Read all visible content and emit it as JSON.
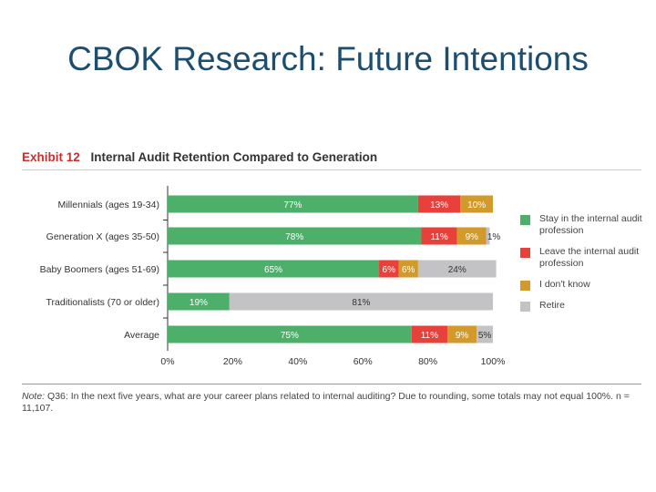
{
  "slide": {
    "title": "CBOK Research: Future Intentions"
  },
  "exhibit": {
    "label": "Exhibit 12",
    "title": "Internal Audit Retention Compared to Generation"
  },
  "note": {
    "label": "Note:",
    "text": "Q36: In the next five years, what are your career plans related to internal auditing? Due to rounding, some totals may not equal 100%. n = 11,107."
  },
  "chart_data": {
    "type": "bar",
    "orientation": "horizontal",
    "stacked": true,
    "title": "Internal Audit Retention Compared to Generation",
    "categories": [
      "Millennials (ages 19-34)",
      "Generation X (ages 35-50)",
      "Baby Boomers (ages 51-69)",
      "Traditionalists (70 or older)",
      "Average"
    ],
    "series": [
      {
        "name": "Stay in the internal audit profession",
        "color": "#4caf6a",
        "values": [
          77,
          78,
          65,
          19,
          75
        ],
        "labels": [
          "77%",
          "78%",
          "65%",
          "19%",
          "75%"
        ]
      },
      {
        "name": "Leave the internal audit profession",
        "color": "#e8403a",
        "values": [
          13,
          11,
          6,
          0,
          11
        ],
        "labels": [
          "13%",
          "11%",
          "6%",
          "",
          "11%"
        ]
      },
      {
        "name": "I don't know",
        "color": "#d19a2b",
        "values": [
          10,
          9,
          6,
          0,
          9
        ],
        "labels": [
          "10%",
          "9%",
          "6%",
          "",
          "9%"
        ]
      },
      {
        "name": "Retire",
        "color": "#c3c3c6",
        "values": [
          0,
          1,
          24,
          81,
          5
        ],
        "labels": [
          "",
          "1%",
          "24%",
          "81%",
          "5%"
        ]
      }
    ],
    "xlim": [
      0,
      100
    ],
    "xticks": [
      "0%",
      "20%",
      "40%",
      "60%",
      "80%",
      "100%"
    ],
    "legend_position": "right"
  }
}
